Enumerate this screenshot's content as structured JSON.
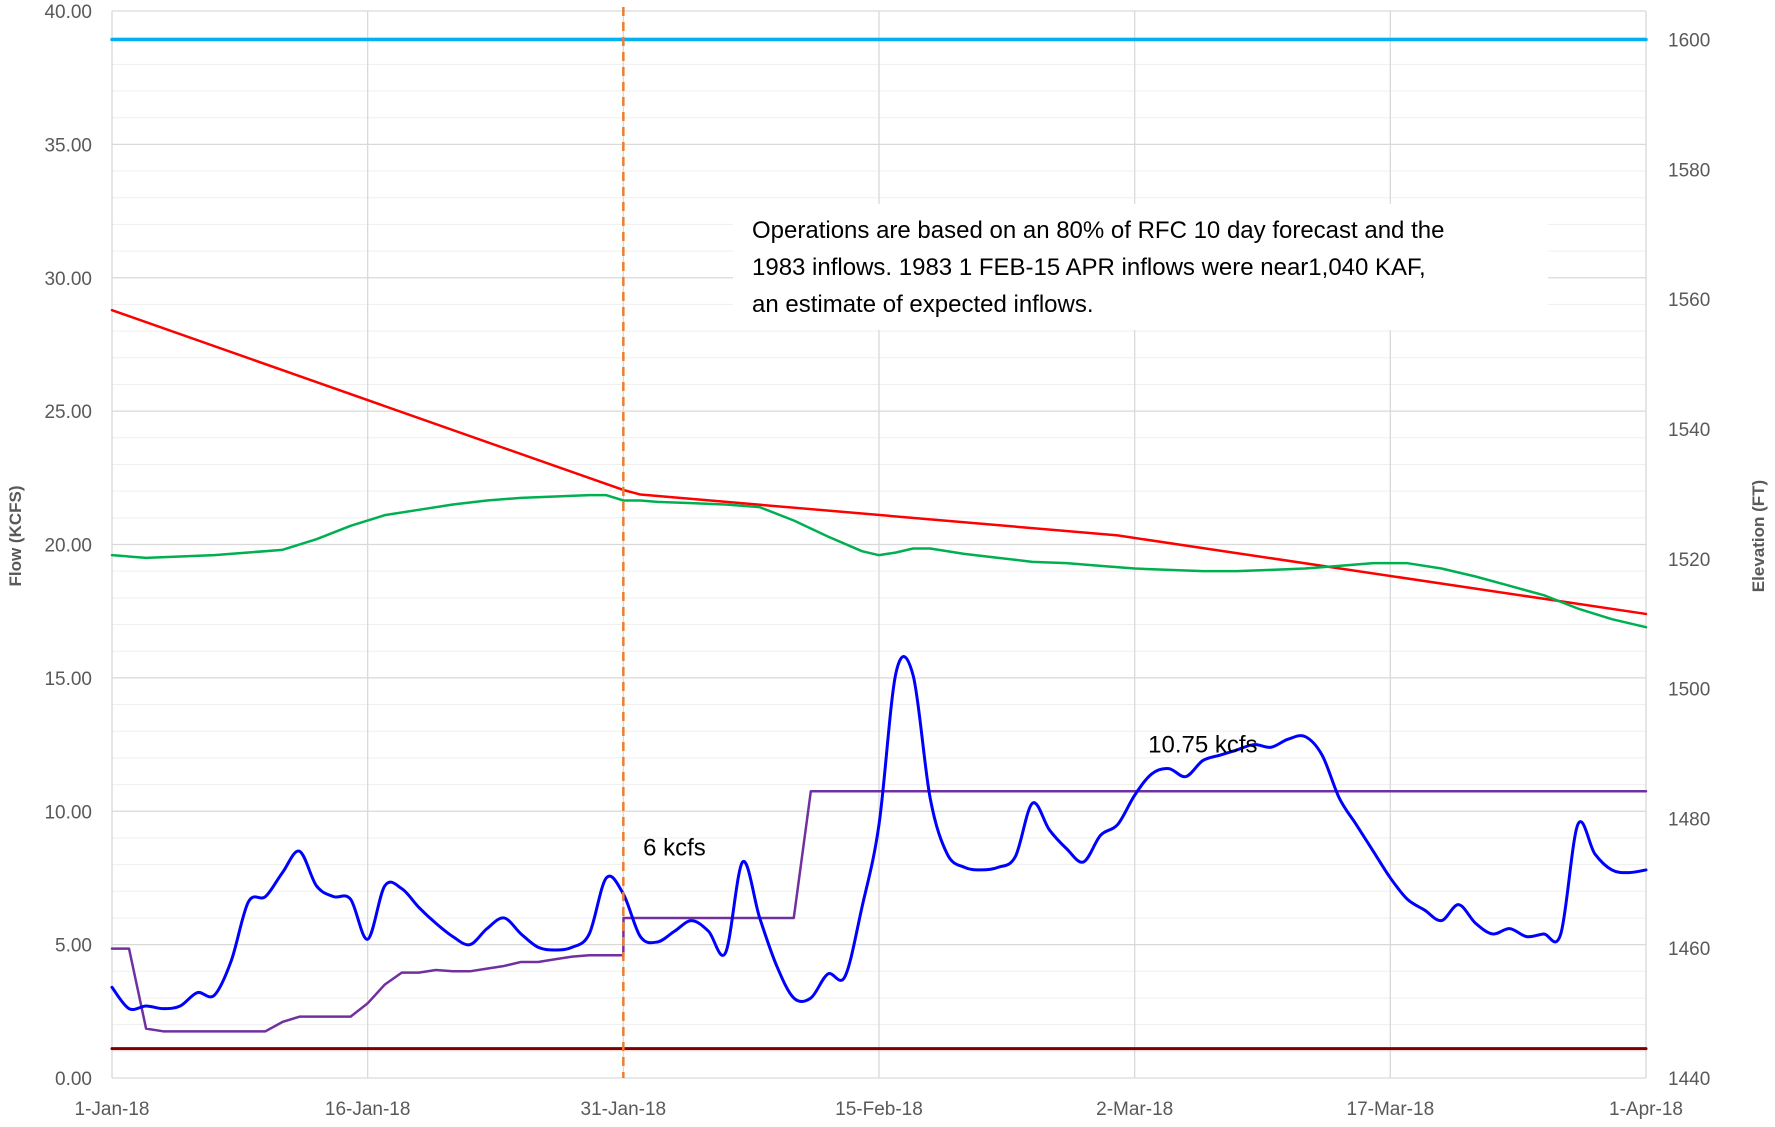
{
  "chart_data": {
    "type": "line",
    "title": "",
    "ylabel": "Flow  (KCFS)",
    "y2label": "Elevation (FT)",
    "ylim": [
      0,
      40
    ],
    "y2lim": [
      1440,
      1604.4
    ],
    "yticks": [
      "0.00",
      "5.00",
      "10.00",
      "15.00",
      "20.00",
      "25.00",
      "30.00",
      "35.00",
      "40.00"
    ],
    "y2ticks": [
      "1440",
      "1460",
      "1480",
      "1500",
      "1520",
      "1540",
      "1560",
      "1580",
      "1600"
    ],
    "xticks": [
      "1-Jan-18",
      "16-Jan-18",
      "31-Jan-18",
      "15-Feb-18",
      "2-Mar-18",
      "17-Mar-18",
      "1-Apr-18"
    ],
    "grid": true,
    "note": [
      "Operations are based on an 80% of RFC 10 day forecast and the",
      "1983 inflows.  1983 1 FEB-15 APR inflows were near1,040 KAF,",
      "an estimate of expected inflows."
    ],
    "annotations": [
      {
        "text": "6 kcfs",
        "x": 33,
        "y": 8.35
      },
      {
        "text": "10.75 kcfs",
        "x": 64,
        "y": 12.2
      }
    ],
    "vline": {
      "x": 30,
      "color": "#ED7D31"
    },
    "series": [
      {
        "axis": "right",
        "color": "#00B0F0",
        "width": 3.5,
        "x": [
          0,
          90
        ],
        "y": [
          1600,
          1600
        ]
      },
      {
        "axis": "right",
        "color": "#FF0000",
        "width": 2.5,
        "x": [
          0,
          30,
          31,
          59,
          90
        ],
        "y": [
          1558.3,
          1530.6,
          1529.9,
          1523.6,
          1511.5
        ]
      },
      {
        "axis": "left",
        "color": "#00B050",
        "width": 2.5,
        "x": [
          0,
          2,
          4,
          6,
          8,
          10,
          12,
          14,
          16,
          18,
          20,
          22,
          24,
          26,
          28,
          29,
          30,
          31,
          32,
          34,
          36,
          38,
          40,
          42,
          44,
          45,
          46,
          47,
          48,
          50,
          52,
          54,
          56,
          58,
          60,
          62,
          64,
          66,
          68,
          70,
          72,
          74,
          76,
          78,
          80,
          82,
          84,
          86,
          88,
          90
        ],
        "y": [
          19.6,
          19.5,
          19.55,
          19.6,
          19.7,
          19.8,
          20.2,
          20.7,
          21.1,
          21.3,
          21.5,
          21.65,
          21.75,
          21.8,
          21.85,
          21.85,
          21.65,
          21.65,
          21.6,
          21.55,
          21.5,
          21.4,
          20.9,
          20.3,
          19.75,
          19.6,
          19.7,
          19.85,
          19.85,
          19.65,
          19.5,
          19.35,
          19.3,
          19.2,
          19.1,
          19.05,
          19.0,
          19.0,
          19.05,
          19.1,
          19.2,
          19.3,
          19.3,
          19.1,
          18.8,
          18.45,
          18.1,
          17.6,
          17.2,
          16.9
        ]
      },
      {
        "axis": "left",
        "color": "#7030A0",
        "width": 2.5,
        "x": [
          0,
          1,
          2,
          3,
          4,
          5,
          9,
          10,
          11,
          12,
          13,
          14,
          15,
          16,
          17,
          18,
          19,
          20,
          21,
          22,
          23,
          24,
          25,
          26,
          27,
          28,
          29,
          30,
          30.01,
          31,
          40,
          41,
          42,
          90
        ],
        "y": [
          4.85,
          4.85,
          1.85,
          1.75,
          1.75,
          1.75,
          1.75,
          2.1,
          2.3,
          2.3,
          2.3,
          2.3,
          2.8,
          3.5,
          3.95,
          3.95,
          4.05,
          4.0,
          4.0,
          4.1,
          4.2,
          4.35,
          4.35,
          4.45,
          4.55,
          4.6,
          4.6,
          4.6,
          6.0,
          6.0,
          6.0,
          10.75,
          10.75,
          10.75
        ]
      },
      {
        "axis": "left",
        "color": "#7F0000",
        "width": 3,
        "x": [
          0,
          90
        ],
        "y": [
          1.1,
          1.1
        ]
      },
      {
        "axis": "left",
        "color": "#0000FF",
        "width": 3,
        "x": [
          0,
          1,
          2,
          3,
          4,
          5,
          6,
          7,
          8,
          9,
          10,
          11,
          12,
          13,
          14,
          15,
          16,
          17,
          18,
          19,
          20,
          21,
          22,
          23,
          24,
          25,
          26,
          27,
          28,
          29,
          30,
          31,
          32,
          33,
          34,
          35,
          36,
          37,
          38,
          39,
          40,
          41,
          42,
          43,
          44,
          45,
          46,
          47,
          48,
          49,
          50,
          51,
          52,
          53,
          54,
          55,
          56,
          57,
          58,
          59,
          60,
          61,
          62,
          63,
          64,
          65,
          66,
          67,
          68,
          69,
          70,
          71,
          72,
          73,
          74,
          75,
          76,
          77,
          78,
          79,
          80,
          81,
          82,
          83,
          84,
          85,
          86,
          87,
          88,
          89,
          90
        ],
        "y": [
          3.4,
          2.6,
          2.7,
          2.6,
          2.7,
          3.2,
          3.1,
          4.4,
          6.6,
          6.8,
          7.7,
          8.5,
          7.2,
          6.8,
          6.7,
          5.2,
          7.2,
          7.1,
          6.4,
          5.8,
          5.3,
          5.0,
          5.6,
          6.0,
          5.4,
          4.9,
          4.8,
          4.9,
          5.4,
          7.5,
          6.9,
          5.3,
          5.1,
          5.5,
          5.9,
          5.5,
          4.7,
          8.1,
          6.0,
          4.2,
          3.0,
          3.0,
          3.9,
          3.8,
          6.4,
          9.5,
          15.2,
          15.1,
          10.5,
          8.4,
          7.9,
          7.8,
          7.9,
          8.3,
          10.3,
          9.3,
          8.6,
          8.1,
          9.1,
          9.5,
          10.6,
          11.4,
          11.6,
          11.3,
          11.9,
          12.1,
          12.3,
          12.5,
          12.4,
          12.7,
          12.8,
          12.1,
          10.5,
          9.5,
          8.5,
          7.5,
          6.7,
          6.3,
          5.9,
          6.5,
          5.8,
          5.4,
          5.6,
          5.3,
          5.4,
          5.4,
          9.5,
          8.4,
          7.8,
          7.7,
          7.8
        ]
      }
    ]
  }
}
